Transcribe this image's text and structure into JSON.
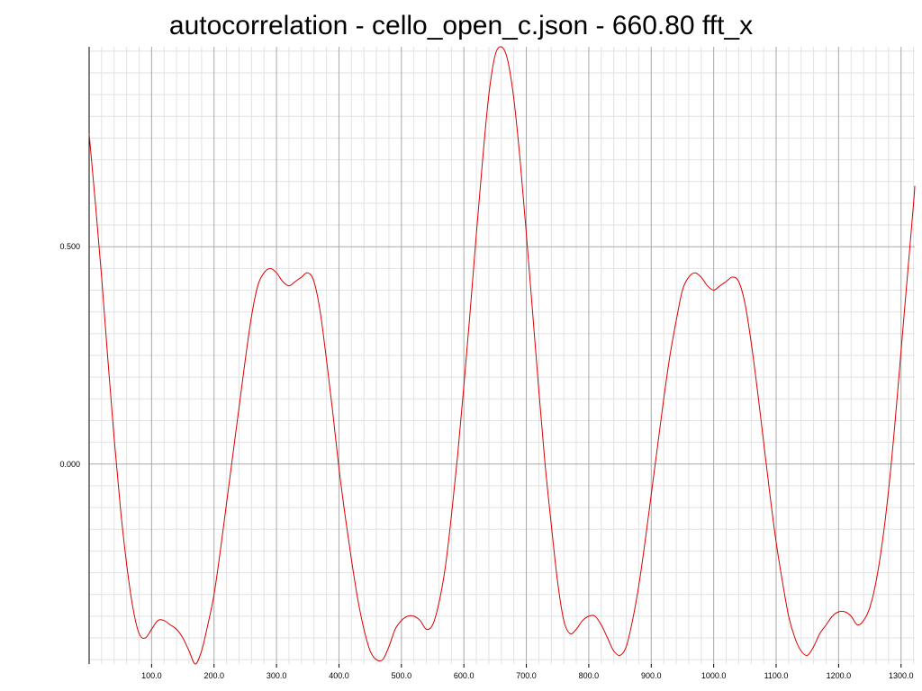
{
  "chart_data": {
    "type": "line",
    "title": "autocorrelation - cello_open_c.json - 660.80 fft_x",
    "xlabel": "",
    "ylabel": "",
    "xlim": [
      0,
      1322
    ],
    "ylim": [
      -0.46,
      0.96
    ],
    "x_ticks": [
      100,
      200,
      300,
      400,
      500,
      600,
      700,
      800,
      900,
      1000,
      1100,
      1200,
      1300
    ],
    "x_tick_labels": [
      "100.0",
      "200.0",
      "300.0",
      "400.0",
      "500.0",
      "600.0",
      "700.0",
      "800.0",
      "900.0",
      "1000.0",
      "1100.0",
      "1200.0",
      "1300.0"
    ],
    "y_ticks": [
      0.0,
      0.5
    ],
    "y_tick_labels": [
      "0.000",
      "0.500"
    ],
    "grid": true,
    "series": [
      {
        "color": "#dd0000",
        "points": [
          [
            0,
            0.76
          ],
          [
            10,
            0.6
          ],
          [
            20,
            0.43
          ],
          [
            30,
            0.24
          ],
          [
            40,
            0.06
          ],
          [
            50,
            -0.1
          ],
          [
            60,
            -0.23
          ],
          [
            70,
            -0.33
          ],
          [
            80,
            -0.39
          ],
          [
            90,
            -0.4
          ],
          [
            100,
            -0.38
          ],
          [
            110,
            -0.36
          ],
          [
            120,
            -0.36
          ],
          [
            130,
            -0.37
          ],
          [
            140,
            -0.38
          ],
          [
            150,
            -0.4
          ],
          [
            160,
            -0.43
          ],
          [
            170,
            -0.46
          ],
          [
            180,
            -0.43
          ],
          [
            190,
            -0.37
          ],
          [
            200,
            -0.3
          ],
          [
            210,
            -0.2
          ],
          [
            220,
            -0.09
          ],
          [
            230,
            0.02
          ],
          [
            240,
            0.13
          ],
          [
            250,
            0.24
          ],
          [
            260,
            0.34
          ],
          [
            270,
            0.41
          ],
          [
            280,
            0.44
          ],
          [
            290,
            0.45
          ],
          [
            300,
            0.44
          ],
          [
            310,
            0.42
          ],
          [
            320,
            0.41
          ],
          [
            330,
            0.42
          ],
          [
            340,
            0.43
          ],
          [
            350,
            0.44
          ],
          [
            360,
            0.42
          ],
          [
            370,
            0.35
          ],
          [
            380,
            0.24
          ],
          [
            390,
            0.12
          ],
          [
            400,
            -0.01
          ],
          [
            410,
            -0.12
          ],
          [
            420,
            -0.22
          ],
          [
            430,
            -0.31
          ],
          [
            440,
            -0.38
          ],
          [
            450,
            -0.43
          ],
          [
            460,
            -0.45
          ],
          [
            470,
            -0.45
          ],
          [
            480,
            -0.42
          ],
          [
            490,
            -0.38
          ],
          [
            500,
            -0.36
          ],
          [
            510,
            -0.35
          ],
          [
            520,
            -0.35
          ],
          [
            530,
            -0.36
          ],
          [
            540,
            -0.38
          ],
          [
            550,
            -0.37
          ],
          [
            560,
            -0.32
          ],
          [
            570,
            -0.24
          ],
          [
            580,
            -0.12
          ],
          [
            590,
            0.02
          ],
          [
            600,
            0.18
          ],
          [
            610,
            0.35
          ],
          [
            620,
            0.53
          ],
          [
            630,
            0.7
          ],
          [
            640,
            0.85
          ],
          [
            650,
            0.94
          ],
          [
            660,
            0.96
          ],
          [
            670,
            0.93
          ],
          [
            680,
            0.84
          ],
          [
            690,
            0.7
          ],
          [
            700,
            0.53
          ],
          [
            710,
            0.35
          ],
          [
            720,
            0.17
          ],
          [
            730,
            0.0
          ],
          [
            740,
            -0.14
          ],
          [
            750,
            -0.27
          ],
          [
            760,
            -0.36
          ],
          [
            770,
            -0.39
          ],
          [
            780,
            -0.38
          ],
          [
            790,
            -0.36
          ],
          [
            800,
            -0.35
          ],
          [
            810,
            -0.35
          ],
          [
            820,
            -0.37
          ],
          [
            830,
            -0.4
          ],
          [
            840,
            -0.43
          ],
          [
            850,
            -0.44
          ],
          [
            860,
            -0.42
          ],
          [
            870,
            -0.36
          ],
          [
            880,
            -0.28
          ],
          [
            890,
            -0.18
          ],
          [
            900,
            -0.07
          ],
          [
            910,
            0.04
          ],
          [
            920,
            0.15
          ],
          [
            930,
            0.25
          ],
          [
            940,
            0.33
          ],
          [
            950,
            0.4
          ],
          [
            960,
            0.43
          ],
          [
            970,
            0.44
          ],
          [
            980,
            0.43
          ],
          [
            990,
            0.41
          ],
          [
            1000,
            0.4
          ],
          [
            1010,
            0.41
          ],
          [
            1020,
            0.42
          ],
          [
            1030,
            0.43
          ],
          [
            1040,
            0.42
          ],
          [
            1050,
            0.37
          ],
          [
            1060,
            0.28
          ],
          [
            1070,
            0.17
          ],
          [
            1080,
            0.05
          ],
          [
            1090,
            -0.07
          ],
          [
            1100,
            -0.18
          ],
          [
            1110,
            -0.27
          ],
          [
            1120,
            -0.35
          ],
          [
            1130,
            -0.4
          ],
          [
            1140,
            -0.43
          ],
          [
            1150,
            -0.44
          ],
          [
            1160,
            -0.42
          ],
          [
            1170,
            -0.39
          ],
          [
            1180,
            -0.37
          ],
          [
            1190,
            -0.35
          ],
          [
            1200,
            -0.34
          ],
          [
            1210,
            -0.34
          ],
          [
            1220,
            -0.35
          ],
          [
            1230,
            -0.37
          ],
          [
            1240,
            -0.36
          ],
          [
            1250,
            -0.33
          ],
          [
            1260,
            -0.27
          ],
          [
            1270,
            -0.18
          ],
          [
            1280,
            -0.06
          ],
          [
            1290,
            0.09
          ],
          [
            1300,
            0.26
          ],
          [
            1310,
            0.43
          ],
          [
            1320,
            0.6
          ],
          [
            1322,
            0.64
          ]
        ]
      }
    ]
  }
}
